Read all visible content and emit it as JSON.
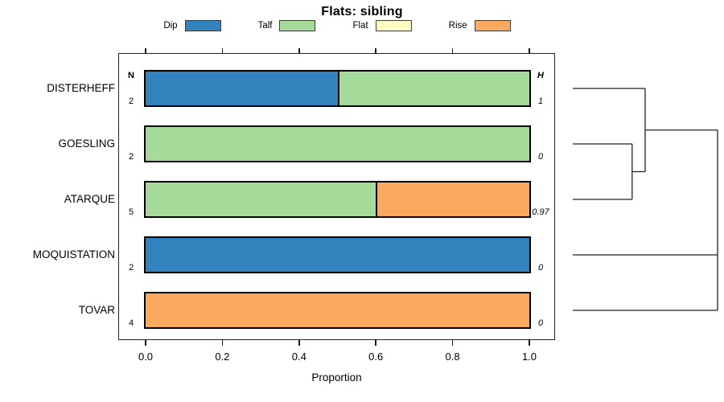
{
  "chart_data": {
    "type": "bar",
    "subtype": "horizontal-stacked-proportion-with-dendrogram",
    "title": "Flats: sibling",
    "xlabel": "Proportion",
    "xlim": [
      0,
      1
    ],
    "x_ticks": [
      0.0,
      0.2,
      0.4,
      0.6,
      0.8,
      1.0
    ],
    "x_tick_labels": [
      "0.0",
      "0.2",
      "0.4",
      "0.6",
      "0.8",
      "1.0"
    ],
    "grid": false,
    "legend_position": "top",
    "categories": [
      "DISTERHEFF",
      "GOESLING",
      "ATARQUE",
      "MOQUISTATION",
      "TOVAR"
    ],
    "series": [
      {
        "name": "Dip",
        "color": "#3182BD",
        "values": [
          0.5,
          0,
          0,
          1,
          0
        ]
      },
      {
        "name": "Talf",
        "color": "#A5DA9B",
        "values": [
          0.5,
          1.0,
          0.6,
          0,
          0
        ]
      },
      {
        "name": "Flat",
        "color": "#FDFDC4",
        "values": [
          0,
          0,
          0,
          0,
          0
        ]
      },
      {
        "name": "Rise",
        "color": "#FCA85E",
        "values": [
          0,
          0,
          0.4,
          0,
          1.0
        ]
      }
    ],
    "n_header": "N",
    "h_header": "H",
    "n_values": [
      "2",
      "2",
      "5",
      "2",
      "4"
    ],
    "h_values": [
      "1",
      "0",
      "0.97",
      "0",
      "0"
    ],
    "dendrogram": {
      "orientation": "right",
      "note": "heights are relative 0-1 from leaves to root",
      "tree": {
        "height": 1.0,
        "children": [
          {
            "height": 0.5,
            "children": [
              {
                "leaf": "DISTERHEFF"
              },
              {
                "height": 0.41,
                "children": [
                  {
                    "leaf": "GOESLING"
                  },
                  {
                    "leaf": "ATARQUE"
                  }
                ]
              }
            ]
          },
          {
            "leaf": "MOQUISTATION"
          },
          {
            "leaf": "TOVAR"
          }
        ]
      }
    }
  }
}
